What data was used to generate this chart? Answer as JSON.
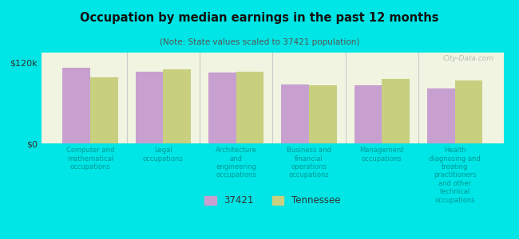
{
  "title": "Occupation by median earnings in the past 12 months",
  "subtitle": "(Note: State values scaled to 37421 population)",
  "background_color": "#00e5e5",
  "plot_bg_color": "#f0f4e0",
  "categories": [
    "Computer and\nmathematical\noccupations",
    "Legal\noccupations",
    "Architecture\nand\nengineering\noccupations",
    "Business and\nfinancial\noperations\noccupations",
    "Management\noccupations",
    "Health\ndiagnosing and\ntreating\npractitioners\nand other\ntechnical\noccupations"
  ],
  "values_37421": [
    113000,
    107000,
    105000,
    88000,
    86000,
    82000
  ],
  "values_tennessee": [
    98000,
    110000,
    107000,
    86000,
    96000,
    94000
  ],
  "color_37421": "#c8a0d0",
  "color_tennessee": "#c8d080",
  "ylim": [
    0,
    135000
  ],
  "yticks": [
    0,
    120000
  ],
  "ytick_labels": [
    "$0",
    "$120k"
  ],
  "legend_37421": "37421",
  "legend_tennessee": "Tennessee",
  "bar_width": 0.38
}
